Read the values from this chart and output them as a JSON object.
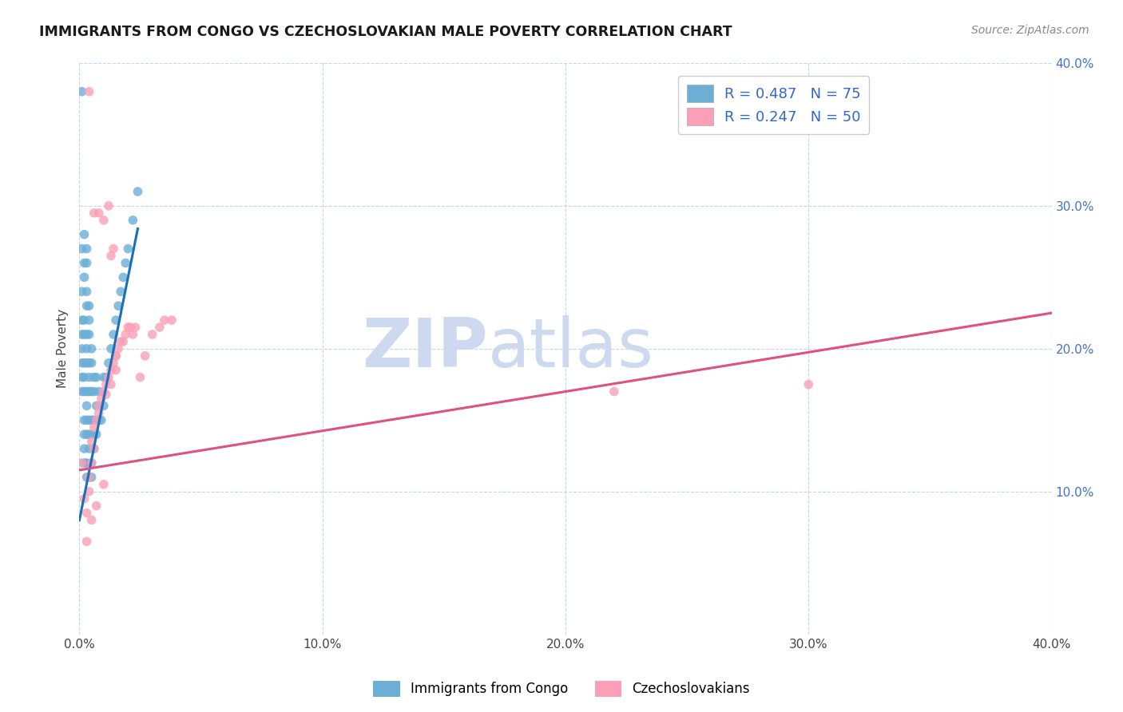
{
  "title": "IMMIGRANTS FROM CONGO VS CZECHOSLOVAKIAN MALE POVERTY CORRELATION CHART",
  "source": "Source: ZipAtlas.com",
  "ylabel": "Male Poverty",
  "xlim": [
    0.0,
    0.4
  ],
  "ylim": [
    0.0,
    0.4
  ],
  "xticks": [
    0.0,
    0.1,
    0.2,
    0.3,
    0.4
  ],
  "yticks_right": [
    0.1,
    0.2,
    0.3,
    0.4
  ],
  "xtick_labels": [
    "0.0%",
    "10.0%",
    "20.0%",
    "30.0%",
    "40.0%"
  ],
  "right_ytick_labels": [
    "10.0%",
    "20.0%",
    "30.0%",
    "40.0%"
  ],
  "color_congo": "#6baed6",
  "color_czech": "#fa9fb5",
  "trendline_congo_color": "#1a6fba",
  "trendline_czech_color": "#e05080",
  "watermark_zip": "ZIP",
  "watermark_atlas": "atlas",
  "watermark_color": "#cdd9ee",
  "background_color": "#ffffff",
  "congo_x": [
    0.001,
    0.001,
    0.001,
    0.001,
    0.001,
    0.001,
    0.001,
    0.001,
    0.002,
    0.002,
    0.002,
    0.002,
    0.002,
    0.002,
    0.002,
    0.002,
    0.002,
    0.002,
    0.002,
    0.002,
    0.003,
    0.003,
    0.003,
    0.003,
    0.003,
    0.003,
    0.003,
    0.003,
    0.003,
    0.003,
    0.003,
    0.003,
    0.003,
    0.004,
    0.004,
    0.004,
    0.004,
    0.004,
    0.004,
    0.004,
    0.004,
    0.004,
    0.004,
    0.005,
    0.005,
    0.005,
    0.005,
    0.005,
    0.005,
    0.005,
    0.006,
    0.006,
    0.006,
    0.006,
    0.007,
    0.007,
    0.007,
    0.008,
    0.008,
    0.009,
    0.01,
    0.01,
    0.011,
    0.012,
    0.013,
    0.014,
    0.015,
    0.016,
    0.017,
    0.018,
    0.019,
    0.02,
    0.022,
    0.024,
    0.001
  ],
  "congo_y": [
    0.27,
    0.24,
    0.22,
    0.21,
    0.2,
    0.19,
    0.18,
    0.17,
    0.28,
    0.26,
    0.25,
    0.22,
    0.21,
    0.19,
    0.18,
    0.17,
    0.15,
    0.14,
    0.13,
    0.12,
    0.27,
    0.26,
    0.24,
    0.23,
    0.21,
    0.2,
    0.19,
    0.17,
    0.16,
    0.15,
    0.14,
    0.12,
    0.11,
    0.23,
    0.22,
    0.21,
    0.19,
    0.18,
    0.17,
    0.15,
    0.14,
    0.13,
    0.11,
    0.2,
    0.19,
    0.17,
    0.15,
    0.14,
    0.12,
    0.11,
    0.18,
    0.17,
    0.15,
    0.13,
    0.18,
    0.16,
    0.14,
    0.17,
    0.15,
    0.15,
    0.18,
    0.16,
    0.18,
    0.19,
    0.2,
    0.21,
    0.22,
    0.23,
    0.24,
    0.25,
    0.26,
    0.27,
    0.29,
    0.31,
    0.38
  ],
  "czech_x": [
    0.001,
    0.002,
    0.003,
    0.003,
    0.004,
    0.004,
    0.005,
    0.005,
    0.005,
    0.006,
    0.006,
    0.007,
    0.007,
    0.008,
    0.008,
    0.009,
    0.01,
    0.01,
    0.011,
    0.011,
    0.012,
    0.013,
    0.013,
    0.014,
    0.015,
    0.015,
    0.016,
    0.017,
    0.018,
    0.019,
    0.02,
    0.021,
    0.022,
    0.023,
    0.025,
    0.027,
    0.03,
    0.033,
    0.035,
    0.038,
    0.004,
    0.006,
    0.008,
    0.01,
    0.012,
    0.013,
    0.014,
    0.015,
    0.22,
    0.3
  ],
  "czech_y": [
    0.12,
    0.095,
    0.085,
    0.065,
    0.11,
    0.1,
    0.135,
    0.12,
    0.08,
    0.145,
    0.13,
    0.15,
    0.09,
    0.16,
    0.155,
    0.165,
    0.17,
    0.105,
    0.175,
    0.168,
    0.18,
    0.185,
    0.175,
    0.19,
    0.195,
    0.185,
    0.2,
    0.205,
    0.205,
    0.21,
    0.215,
    0.215,
    0.21,
    0.215,
    0.18,
    0.195,
    0.21,
    0.215,
    0.22,
    0.22,
    0.38,
    0.295,
    0.295,
    0.29,
    0.3,
    0.265,
    0.27,
    0.195,
    0.17,
    0.175
  ],
  "congo_trend_x": [
    0.0,
    0.024
  ],
  "congo_trend_y_intercept": 0.08,
  "congo_trend_slope": 8.5,
  "czech_trend_x": [
    0.0,
    0.4
  ],
  "czech_trend_y_start": 0.115,
  "czech_trend_y_end": 0.225
}
